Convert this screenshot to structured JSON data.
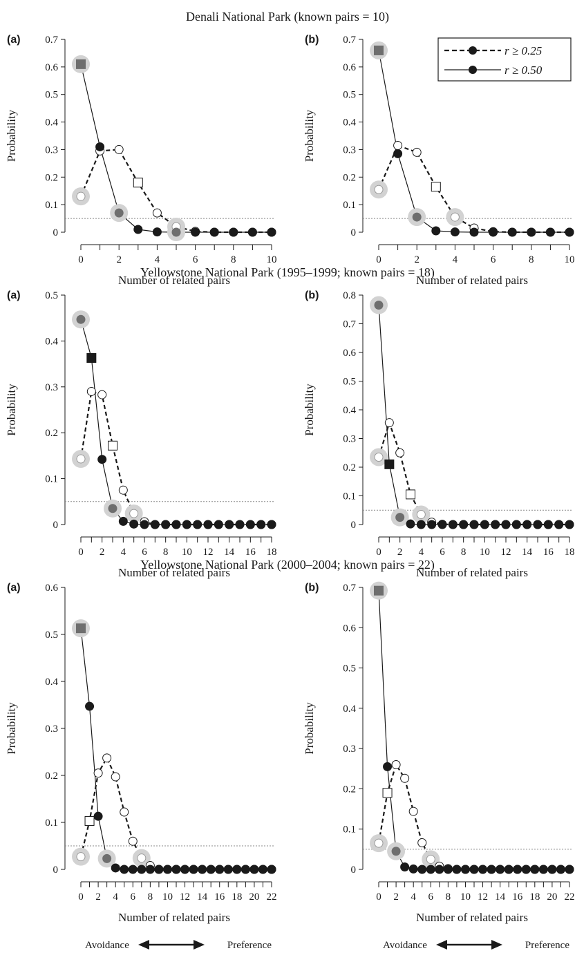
{
  "figure": {
    "xlabel": "Number of related pairs",
    "ylabel": "Probability",
    "legend": {
      "position": "top-right of Denali panel (b)",
      "entries": [
        {
          "label": "r ≥ 0.25",
          "style": "dashed",
          "series": "r25"
        },
        {
          "label": "r ≥ 0.50",
          "style": "solid",
          "series": "r50"
        }
      ]
    },
    "axis_note": {
      "left": "Avoidance",
      "right": "Preference"
    },
    "reference_line": {
      "y": 0.05,
      "style": "dotted",
      "color": "#8a8a8a"
    },
    "colors": {
      "r25_marker": "#ffffff",
      "r50_marker": "#1a1a1a",
      "highlight_halo": "#d2d2d2",
      "highlight_fill": "#6e6e6e",
      "line": "#1a1a1a"
    }
  },
  "chart_data": [
    {
      "group": "Denali National Park (known pairs = 10)",
      "panel": "(a)",
      "type": "line",
      "xlim": [
        0,
        10
      ],
      "xticks": [
        0,
        2,
        4,
        6,
        8,
        10
      ],
      "ylim": [
        0,
        0.7
      ],
      "yticks": [
        0,
        0.1,
        0.2,
        0.3,
        0.4,
        0.5,
        0.6,
        0.7
      ],
      "series": {
        "r25": {
          "x": [
            0,
            1,
            2,
            3,
            4,
            5,
            6,
            7,
            8,
            9,
            10
          ],
          "y": [
            0.13,
            0.295,
            0.3,
            0.18,
            0.07,
            0.02,
            0.003,
            0,
            0,
            0,
            0
          ],
          "highlight": [
            0,
            5
          ],
          "square": [
            3
          ]
        },
        "r50": {
          "x": [
            0,
            1,
            2,
            3,
            4,
            5,
            6,
            7,
            8,
            9,
            10
          ],
          "y": [
            0.61,
            0.31,
            0.07,
            0.01,
            0.001,
            0,
            0,
            0,
            0,
            0,
            0
          ],
          "highlight": [
            0,
            2,
            5
          ],
          "square": [
            0
          ]
        }
      }
    },
    {
      "group": "Denali National Park (known pairs = 10)",
      "panel": "(b)",
      "type": "line",
      "xlim": [
        0,
        10
      ],
      "xticks": [
        0,
        2,
        4,
        6,
        8,
        10
      ],
      "ylim": [
        0,
        0.7
      ],
      "yticks": [
        0,
        0.1,
        0.2,
        0.3,
        0.4,
        0.5,
        0.6,
        0.7
      ],
      "show_legend": true,
      "series": {
        "r25": {
          "x": [
            0,
            1,
            2,
            3,
            4,
            5,
            6,
            7,
            8,
            9,
            10
          ],
          "y": [
            0.155,
            0.315,
            0.29,
            0.165,
            0.055,
            0.015,
            0.002,
            0,
            0,
            0,
            0
          ],
          "highlight": [
            0,
            4
          ],
          "square": [
            3
          ]
        },
        "r50": {
          "x": [
            0,
            1,
            2,
            3,
            4,
            5,
            6,
            7,
            8,
            9,
            10
          ],
          "y": [
            0.66,
            0.285,
            0.055,
            0.005,
            0.001,
            0,
            0,
            0,
            0,
            0,
            0
          ],
          "highlight": [
            0,
            2
          ],
          "square": [
            0
          ]
        }
      }
    },
    {
      "group": "Yellowstone National Park (1995–1999; known pairs = 18)",
      "panel": "(a)",
      "type": "line",
      "xlim": [
        0,
        18
      ],
      "xticks": [
        0,
        2,
        4,
        6,
        8,
        10,
        12,
        14,
        16,
        18
      ],
      "ylim": [
        0,
        0.5
      ],
      "yticks": [
        0,
        0.1,
        0.2,
        0.3,
        0.4,
        0.5
      ],
      "series": {
        "r25": {
          "x": [
            0,
            1,
            2,
            3,
            4,
            5,
            6,
            7,
            8,
            9,
            10,
            11,
            12,
            13,
            14,
            15,
            16,
            17,
            18
          ],
          "y": [
            0.143,
            0.29,
            0.283,
            0.172,
            0.075,
            0.024,
            0.006,
            0,
            0,
            0,
            0,
            0,
            0,
            0,
            0,
            0,
            0,
            0,
            0
          ],
          "highlight": [
            0,
            5
          ],
          "square": [
            3
          ]
        },
        "r50": {
          "x": [
            0,
            1,
            2,
            3,
            4,
            5,
            6,
            7,
            8,
            9,
            10,
            11,
            12,
            13,
            14,
            15,
            16,
            17,
            18
          ],
          "y": [
            0.447,
            0.363,
            0.142,
            0.035,
            0.007,
            0.001,
            0,
            0,
            0,
            0,
            0,
            0,
            0,
            0,
            0,
            0,
            0,
            0,
            0
          ],
          "highlight": [
            0,
            3
          ],
          "square": [
            1
          ]
        }
      }
    },
    {
      "group": "Yellowstone National Park (1995–1999; known pairs = 18)",
      "panel": "(b)",
      "type": "line",
      "xlim": [
        0,
        18
      ],
      "xticks": [
        0,
        2,
        4,
        6,
        8,
        10,
        12,
        14,
        16,
        18
      ],
      "ylim": [
        0,
        0.8
      ],
      "yticks": [
        0,
        0.1,
        0.2,
        0.3,
        0.4,
        0.5,
        0.6,
        0.7,
        0.8
      ],
      "series": {
        "r25": {
          "x": [
            0,
            1,
            2,
            3,
            4,
            5,
            6,
            7,
            8,
            9,
            10,
            11,
            12,
            13,
            14,
            15,
            16,
            17,
            18
          ],
          "y": [
            0.235,
            0.355,
            0.25,
            0.105,
            0.035,
            0.008,
            0.001,
            0,
            0,
            0,
            0,
            0,
            0,
            0,
            0,
            0,
            0,
            0,
            0
          ],
          "highlight": [
            0,
            4
          ],
          "square": [
            3
          ]
        },
        "r50": {
          "x": [
            0,
            1,
            2,
            3,
            4,
            5,
            6,
            7,
            8,
            9,
            10,
            11,
            12,
            13,
            14,
            15,
            16,
            17,
            18
          ],
          "y": [
            0.765,
            0.21,
            0.025,
            0.002,
            0,
            0,
            0,
            0,
            0,
            0,
            0,
            0,
            0,
            0,
            0,
            0,
            0,
            0,
            0
          ],
          "highlight": [
            0,
            2
          ],
          "square": [
            1
          ]
        }
      }
    },
    {
      "group": "Yellowstone National Park (2000–2004; known pairs = 22)",
      "panel": "(a)",
      "type": "line",
      "xlim": [
        0,
        22
      ],
      "xticks": [
        0,
        2,
        4,
        6,
        8,
        10,
        12,
        14,
        16,
        18,
        20,
        22
      ],
      "ylim": [
        0,
        0.6
      ],
      "yticks": [
        0,
        0.1,
        0.2,
        0.3,
        0.4,
        0.5,
        0.6
      ],
      "series": {
        "r25": {
          "x": [
            0,
            1,
            2,
            3,
            4,
            5,
            6,
            7,
            8,
            9,
            10,
            11,
            12,
            13,
            14,
            15,
            16,
            17,
            18,
            19,
            20,
            21,
            22
          ],
          "y": [
            0.027,
            0.103,
            0.205,
            0.237,
            0.197,
            0.122,
            0.06,
            0.024,
            0.008,
            0,
            0,
            0,
            0,
            0,
            0,
            0,
            0,
            0,
            0,
            0,
            0,
            0,
            0
          ],
          "highlight": [
            0,
            7
          ],
          "square": [
            1
          ]
        },
        "r50": {
          "x": [
            0,
            1,
            2,
            3,
            4,
            5,
            6,
            7,
            8,
            9,
            10,
            11,
            12,
            13,
            14,
            15,
            16,
            17,
            18,
            19,
            20,
            21,
            22
          ],
          "y": [
            0.513,
            0.347,
            0.113,
            0.023,
            0.003,
            0,
            0,
            0,
            0,
            0,
            0,
            0,
            0,
            0,
            0,
            0,
            0,
            0,
            0,
            0,
            0,
            0,
            0
          ],
          "highlight": [
            0,
            3
          ],
          "square": [
            0
          ]
        }
      }
    },
    {
      "group": "Yellowstone National Park (2000–2004; known pairs = 22)",
      "panel": "(b)",
      "type": "line",
      "xlim": [
        0,
        22
      ],
      "xticks": [
        0,
        2,
        4,
        6,
        8,
        10,
        12,
        14,
        16,
        18,
        20,
        22
      ],
      "ylim": [
        0,
        0.7
      ],
      "yticks": [
        0,
        0.1,
        0.2,
        0.3,
        0.4,
        0.5,
        0.6,
        0.7
      ],
      "series": {
        "r25": {
          "x": [
            0,
            1,
            2,
            3,
            4,
            5,
            6,
            7,
            8,
            9,
            10,
            11,
            12,
            13,
            14,
            15,
            16,
            17,
            18,
            19,
            20,
            21,
            22
          ],
          "y": [
            0.065,
            0.19,
            0.26,
            0.226,
            0.144,
            0.066,
            0.025,
            0.008,
            0.002,
            0,
            0,
            0,
            0,
            0,
            0,
            0,
            0,
            0,
            0,
            0,
            0,
            0,
            0
          ],
          "highlight": [
            0,
            6
          ],
          "square": [
            1
          ]
        },
        "r50": {
          "x": [
            0,
            1,
            2,
            3,
            4,
            5,
            6,
            7,
            8,
            9,
            10,
            11,
            12,
            13,
            14,
            15,
            16,
            17,
            18,
            19,
            20,
            21,
            22
          ],
          "y": [
            0.692,
            0.255,
            0.045,
            0.006,
            0.001,
            0,
            0,
            0,
            0,
            0,
            0,
            0,
            0,
            0,
            0,
            0,
            0,
            0,
            0,
            0,
            0,
            0,
            0
          ],
          "highlight": [
            0,
            2
          ],
          "square": [
            0
          ]
        }
      }
    }
  ]
}
